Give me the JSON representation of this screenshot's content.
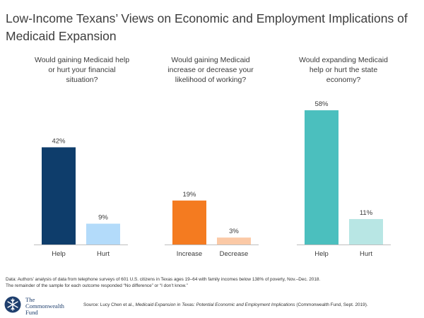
{
  "title": "Low-Income Texans’ Views on Economic and Employment Implications of Medicaid Expansion",
  "chart_data": {
    "type": "bar",
    "title": "Low-Income Texans’ Views on Economic and Employment Implications of Medicaid Expansion",
    "ylim": [
      0,
      65
    ],
    "grid": false,
    "legend": "none",
    "panels": [
      {
        "question": "Would gaining Medicaid help or hurt your financial situation?",
        "categories": [
          "Help",
          "Hurt"
        ],
        "values": [
          42,
          9
        ],
        "labels": [
          "42%",
          "9%"
        ],
        "colors": [
          "#0e3d6b",
          "#b3dbfa"
        ]
      },
      {
        "question": "Would gaining Medicaid increase or decrease your likelihood of working?",
        "categories": [
          "Increase",
          "Decrease"
        ],
        "values": [
          19,
          3
        ],
        "labels": [
          "19%",
          "3%"
        ],
        "colors": [
          "#f47b20",
          "#fbc9a6"
        ]
      },
      {
        "question": "Would expanding Medicaid help or hurt the state economy?",
        "categories": [
          "Help",
          "Hurt"
        ],
        "values": [
          58,
          11
        ],
        "labels": [
          "58%",
          "11%"
        ],
        "colors": [
          "#4bbfbe",
          "#b8e6e4"
        ]
      }
    ]
  },
  "notes": {
    "data": "Data: Authors’ analysis of data from telephone surveys of 601 U.S. citizens in Texas ages 19–64 with family incomes below 138% of poverty, Nov.–Dec. 2018.",
    "remainder": "The remainder of the sample for each outcome responded “No difference” or “I don’t know.”"
  },
  "logo": {
    "line1": "The",
    "line2": "Commonwealth",
    "line3": "Fund",
    "icon": "snowflake-logo-icon"
  },
  "source": {
    "prefix": "Source: Lucy Chen et al., ",
    "title": "Medicaid Expansion in Texas: Potential Economic and Employment Implications",
    "suffix": " (Commonwealth Fund, Sept. 2019)."
  },
  "colors": {
    "axis": "#bfbfbf",
    "text": "#3a3a3a",
    "brand": "#1f3f6e"
  }
}
